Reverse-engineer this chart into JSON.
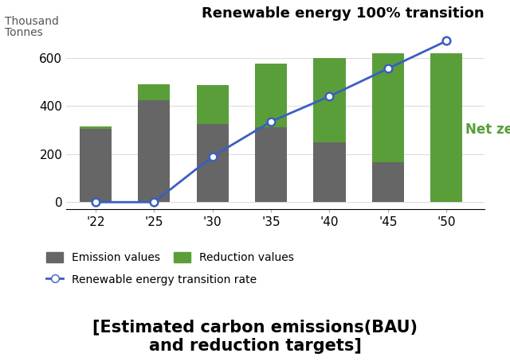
{
  "years": [
    "'22",
    "'25",
    "'30",
    "'35",
    "'40",
    "'45",
    "'50"
  ],
  "emission_values": [
    305,
    425,
    325,
    310,
    250,
    165,
    0
  ],
  "reduction_values": [
    10,
    65,
    160,
    265,
    350,
    455,
    620
  ],
  "transition_rate": [
    0,
    0,
    190,
    335,
    440,
    555,
    670
  ],
  "bar_emission_color": "#666666",
  "bar_reduction_color": "#5a9e3a",
  "line_color": "#3a5fbf",
  "title": "Renewable energy 100% transition",
  "title_fontsize": 13,
  "ylabel_line1": "Thousand",
  "ylabel_line2": "Tonnes",
  "ylabel_fontsize": 10,
  "tick_fontsize": 11,
  "net_zero_label": "Net zero",
  "net_zero_color": "#5a9e3a",
  "net_zero_fontsize": 12,
  "legend_emission": "Emission values",
  "legend_reduction": "Reduction values",
  "legend_line": "Renewable energy transition rate",
  "legend_fontsize": 10,
  "footer": "[Estimated carbon emissions(BAU)\nand reduction targets]",
  "footer_fontsize": 15,
  "ylim": [
    -30,
    720
  ],
  "yticks": [
    0,
    200,
    400,
    600
  ],
  "bar_width": 0.55
}
